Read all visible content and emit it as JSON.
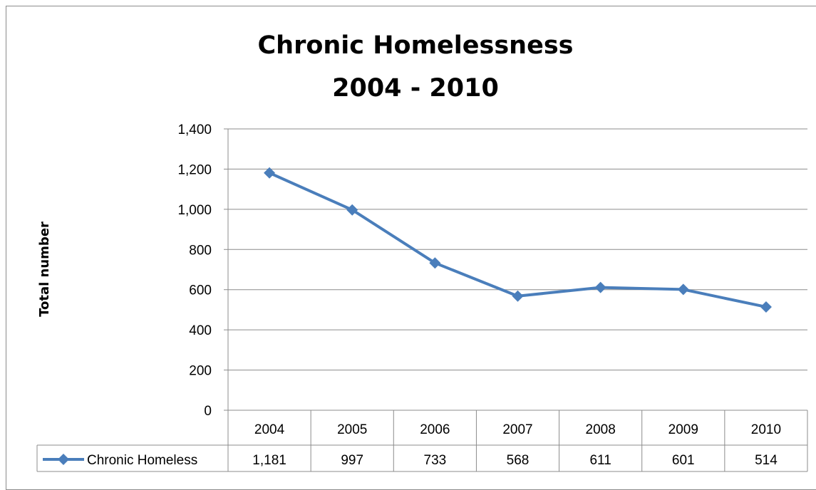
{
  "chart_data": {
    "type": "line",
    "title": [
      "Chronic Homelessness",
      "2004 - 2010"
    ],
    "xlabel": "",
    "ylabel": "Total number",
    "ylim": [
      0,
      1400
    ],
    "yticks": [
      "0",
      "200",
      "400",
      "600",
      "800",
      "1,000",
      "1,200",
      "1,400"
    ],
    "categories": [
      "2004",
      "2005",
      "2006",
      "2007",
      "2008",
      "2009",
      "2010"
    ],
    "grid": true,
    "legend": "data-table-left",
    "series": [
      {
        "name": "Chronic Homeless",
        "values": [
          1181,
          997,
          733,
          568,
          611,
          601,
          514
        ],
        "labels": [
          "1,181",
          "997",
          "733",
          "568",
          "611",
          "601",
          "514"
        ],
        "color": "#4a7ebb",
        "marker": "diamond"
      }
    ]
  }
}
